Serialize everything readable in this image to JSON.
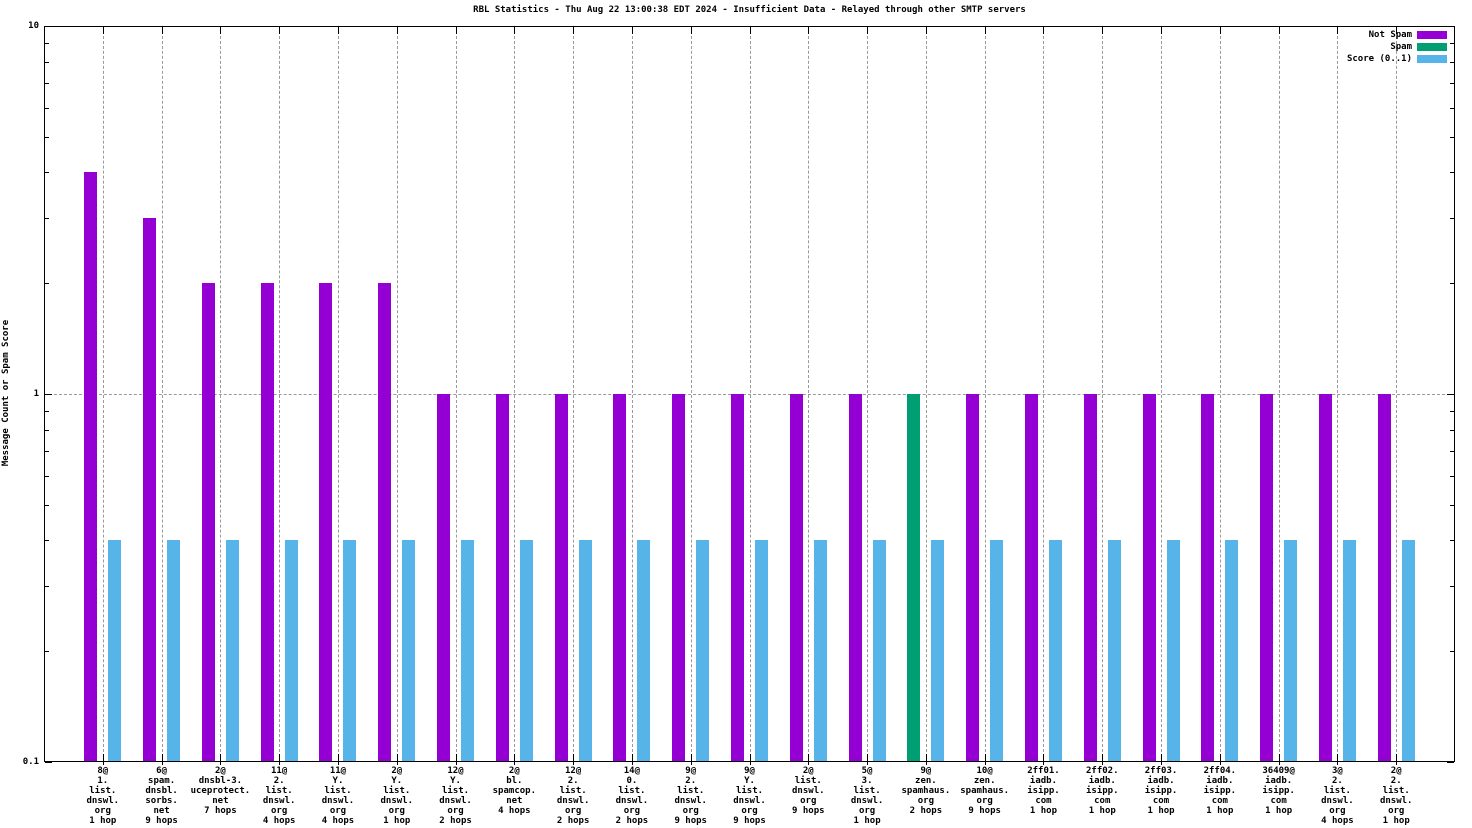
{
  "chart_data": {
    "type": "bar",
    "title": "RBL Statistics - Thu Aug 22 13:00:38 EDT 2024 - Insufficient Data - Relayed through other SMTP servers",
    "ylabel": "Message Count or Spam Score",
    "xlabel": "",
    "yscale": "log",
    "ylim": [
      0.1,
      10
    ],
    "yticks": [
      {
        "value": 0.1,
        "label": "0.1"
      },
      {
        "value": 1,
        "label": "1"
      },
      {
        "value": 10,
        "label": "10"
      }
    ],
    "grid": {
      "horizontal_at": [
        1
      ],
      "vertical_per_category": true,
      "style": "dashed-gray"
    },
    "legend": {
      "position": "top-right-inside"
    },
    "series": [
      {
        "key": "not_spam",
        "name": "Not Spam",
        "color": "#9400d3"
      },
      {
        "key": "spam",
        "name": "Spam",
        "color": "#009e73"
      },
      {
        "key": "score",
        "name": "Score (0..1)",
        "color": "#56b4e9"
      }
    ],
    "categories": [
      {
        "label_lines": [
          "8@",
          "1.",
          "list.",
          "dnswl.",
          "org",
          "1 hop"
        ],
        "not_spam": 4,
        "spam": 0,
        "score": 0.4
      },
      {
        "label_lines": [
          "6@",
          "spam.",
          "dnsbl.",
          "sorbs.",
          "net",
          "9 hops"
        ],
        "not_spam": 3,
        "spam": 0,
        "score": 0.4
      },
      {
        "label_lines": [
          "2@",
          "dnsbl-3.",
          "uceprotect.",
          "net",
          "7 hops"
        ],
        "not_spam": 2,
        "spam": 0,
        "score": 0.4
      },
      {
        "label_lines": [
          "11@",
          "2.",
          "list.",
          "dnswl.",
          "org",
          "4 hops"
        ],
        "not_spam": 2,
        "spam": 0,
        "score": 0.4
      },
      {
        "label_lines": [
          "11@",
          "Y.",
          "list.",
          "dnswl.",
          "org",
          "4 hops"
        ],
        "not_spam": 2,
        "spam": 0,
        "score": 0.4
      },
      {
        "label_lines": [
          "2@",
          "Y.",
          "list.",
          "dnswl.",
          "org",
          "1 hop"
        ],
        "not_spam": 2,
        "spam": 0,
        "score": 0.4
      },
      {
        "label_lines": [
          "12@",
          "Y.",
          "list.",
          "dnswl.",
          "org",
          "2 hops"
        ],
        "not_spam": 1,
        "spam": 0,
        "score": 0.4
      },
      {
        "label_lines": [
          "2@",
          "bl.",
          "spamcop.",
          "net",
          "4 hops"
        ],
        "not_spam": 1,
        "spam": 0,
        "score": 0.4
      },
      {
        "label_lines": [
          "12@",
          "2.",
          "list.",
          "dnswl.",
          "org",
          "2 hops"
        ],
        "not_spam": 1,
        "spam": 0,
        "score": 0.4
      },
      {
        "label_lines": [
          "14@",
          "0.",
          "list.",
          "dnswl.",
          "org",
          "2 hops"
        ],
        "not_spam": 1,
        "spam": 0,
        "score": 0.4
      },
      {
        "label_lines": [
          "9@",
          "2.",
          "list.",
          "dnswl.",
          "org",
          "9 hops"
        ],
        "not_spam": 1,
        "spam": 0,
        "score": 0.4
      },
      {
        "label_lines": [
          "9@",
          "Y.",
          "list.",
          "dnswl.",
          "org",
          "9 hops"
        ],
        "not_spam": 1,
        "spam": 0,
        "score": 0.4
      },
      {
        "label_lines": [
          "2@",
          "list.",
          "dnswl.",
          "org",
          "9 hops"
        ],
        "not_spam": 1,
        "spam": 0,
        "score": 0.4
      },
      {
        "label_lines": [
          "5@",
          "3.",
          "list.",
          "dnswl.",
          "org",
          "1 hop"
        ],
        "not_spam": 1,
        "spam": 0,
        "score": 0.4
      },
      {
        "label_lines": [
          "9@",
          "zen.",
          "spamhaus.",
          "org",
          "2 hops"
        ],
        "not_spam": 0,
        "spam": 1,
        "score": 0.4
      },
      {
        "label_lines": [
          "10@",
          "zen.",
          "spamhaus.",
          "org",
          "9 hops"
        ],
        "not_spam": 1,
        "spam": 0,
        "score": 0.4
      },
      {
        "label_lines": [
          "2ff01.",
          "iadb.",
          "isipp.",
          "com",
          "1 hop"
        ],
        "not_spam": 1,
        "spam": 0,
        "score": 0.4
      },
      {
        "label_lines": [
          "2ff02.",
          "iadb.",
          "isipp.",
          "com",
          "1 hop"
        ],
        "not_spam": 1,
        "spam": 0,
        "score": 0.4
      },
      {
        "label_lines": [
          "2ff03.",
          "iadb.",
          "isipp.",
          "com",
          "1 hop"
        ],
        "not_spam": 1,
        "spam": 0,
        "score": 0.4
      },
      {
        "label_lines": [
          "2ff04.",
          "iadb.",
          "isipp.",
          "com",
          "1 hop"
        ],
        "not_spam": 1,
        "spam": 0,
        "score": 0.4
      },
      {
        "label_lines": [
          "36409@",
          "iadb.",
          "isipp.",
          "com",
          "1 hop"
        ],
        "not_spam": 1,
        "spam": 0,
        "score": 0.4
      },
      {
        "label_lines": [
          "3@",
          "2.",
          "list.",
          "dnswl.",
          "org",
          "4 hops"
        ],
        "not_spam": 1,
        "spam": 0,
        "score": 0.4
      },
      {
        "label_lines": [
          "2@",
          "2.",
          "list.",
          "dnswl.",
          "org",
          "1 hop"
        ],
        "not_spam": 1,
        "spam": 0,
        "score": 0.4
      }
    ]
  },
  "colors": {
    "background": "#ffffff",
    "axis": "#000000",
    "grid": "#9a9a9a",
    "text": "#000000"
  }
}
